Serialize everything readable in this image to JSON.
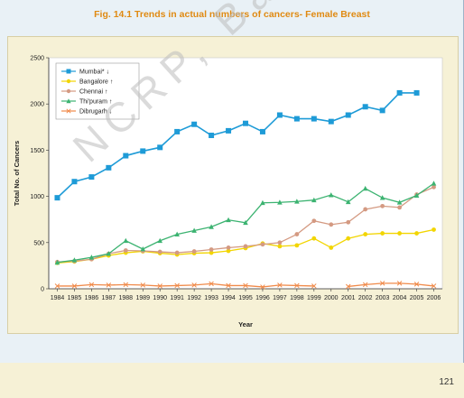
{
  "page": {
    "title": "Fig. 14.1 Trends in actual numbers of cancers- Female Breast",
    "page_number": "121",
    "watermark": "NCRP, Ban"
  },
  "chart_data": {
    "type": "line",
    "title": "Fig. 14.1 Trends in actual numbers of cancers- Female Breast",
    "xlabel": "Year",
    "ylabel": "Total No. of Cancers",
    "ylim": [
      0,
      2500
    ],
    "yticks": [
      0,
      500,
      1000,
      1500,
      2000,
      2500
    ],
    "grid": false,
    "legend_position": "top-left",
    "categories": [
      "1984",
      "1985",
      "1986",
      "1987",
      "1988",
      "1989",
      "1990",
      "1991",
      "1992",
      "1993",
      "1994",
      "1995",
      "1996",
      "1997",
      "1998",
      "1999",
      "2000",
      "2001",
      "2002",
      "2003",
      "2004",
      "2005",
      "2006"
    ],
    "series": [
      {
        "name": "Mumbai* ↓",
        "color": "#1e9bd7",
        "marker": "square",
        "values": [
          985,
          1160,
          1210,
          1310,
          1440,
          1490,
          1530,
          1700,
          1780,
          1660,
          1710,
          1790,
          1700,
          1880,
          1840,
          1840,
          1810,
          1880,
          1970,
          1930,
          2120,
          2120,
          null
        ]
      },
      {
        "name": "Bangalore ↑",
        "color": "#f2d500",
        "marker": "circle",
        "values": [
          280,
          295,
          320,
          360,
          390,
          405,
          385,
          370,
          385,
          390,
          410,
          440,
          490,
          460,
          470,
          545,
          445,
          545,
          590,
          600,
          600,
          600,
          640
        ]
      },
      {
        "name": "Chennai ↑",
        "color": "#d49a82",
        "marker": "circle",
        "values": [
          290,
          300,
          320,
          380,
          415,
          410,
          400,
          390,
          405,
          425,
          445,
          460,
          480,
          500,
          590,
          735,
          695,
          720,
          860,
          895,
          880,
          1020,
          1100
        ]
      },
      {
        "name": "Thi'puram ↑",
        "color": "#3cb371",
        "marker": "triangle",
        "values": [
          285,
          310,
          340,
          380,
          520,
          430,
          520,
          590,
          630,
          670,
          745,
          715,
          930,
          935,
          945,
          960,
          1015,
          940,
          1085,
          985,
          935,
          1010,
          1140
        ]
      },
      {
        "name": "Dibrugarh ↓",
        "color": "#f08a4a",
        "marker": "x",
        "values": [
          30,
          30,
          45,
          40,
          45,
          40,
          30,
          35,
          40,
          55,
          35,
          35,
          20,
          40,
          35,
          30,
          null,
          25,
          45,
          60,
          60,
          50,
          30
        ]
      }
    ]
  }
}
